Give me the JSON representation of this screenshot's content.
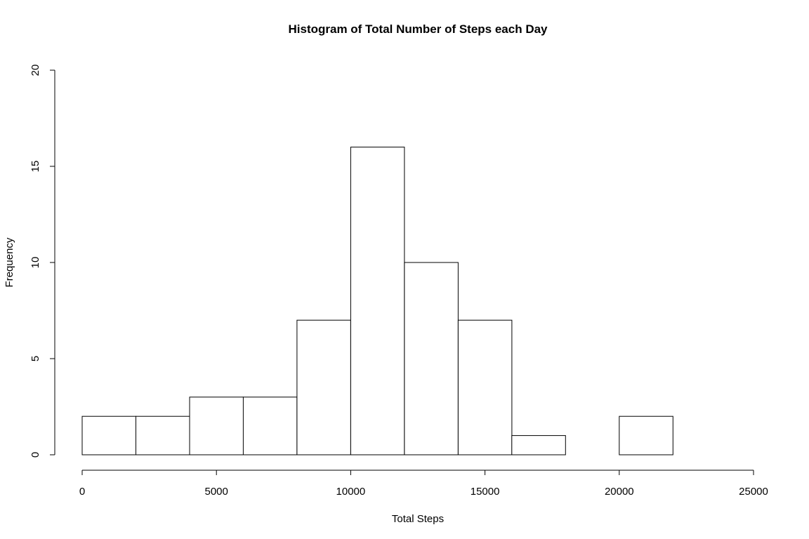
{
  "chart_data": {
    "type": "bar",
    "title": "Histogram of Total Number of Steps each Day",
    "xlabel": "Total Steps",
    "ylabel": "Frequency",
    "xlim": [
      0,
      25000
    ],
    "ylim": [
      0,
      20
    ],
    "x_ticks": [
      0,
      5000,
      10000,
      15000,
      20000,
      25000
    ],
    "y_ticks": [
      0,
      5,
      10,
      15,
      20
    ],
    "bin_edges": [
      0,
      2000,
      4000,
      6000,
      8000,
      10000,
      12000,
      14000,
      16000,
      18000,
      20000,
      22000
    ],
    "values": [
      2,
      2,
      3,
      3,
      7,
      16,
      10,
      7,
      1,
      0,
      2
    ],
    "grid": false,
    "colors": {
      "bar_fill": "#ffffff",
      "bar_stroke": "#000000"
    }
  }
}
